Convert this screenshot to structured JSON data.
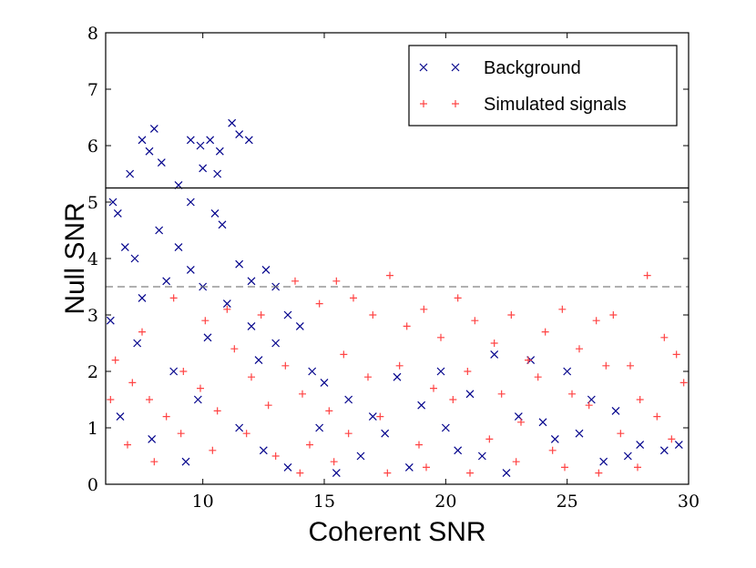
{
  "chart_data": {
    "type": "scatter",
    "title": "",
    "xlabel": "Coherent SNR",
    "ylabel": "Null SNR",
    "xlim": [
      6,
      30
    ],
    "ylim": [
      0,
      8
    ],
    "x_ticks": [
      "10",
      "15",
      "20",
      "25",
      "30"
    ],
    "y_ticks": [
      "0",
      "1",
      "2",
      "3",
      "4",
      "5",
      "6",
      "7",
      "8"
    ],
    "grid": false,
    "legend_position": "top-right",
    "threshold_lines": [
      {
        "name": "solid-threshold",
        "y": 5.25,
        "style": "solid",
        "color": "#000000"
      },
      {
        "name": "dashed-threshold",
        "y": 3.5,
        "style": "dashed",
        "color": "#808080"
      }
    ],
    "series": [
      {
        "name": "Background",
        "marker": "x",
        "color": "#00008b",
        "points": [
          [
            6.5,
            4.8
          ],
          [
            7.0,
            5.5
          ],
          [
            7.5,
            6.1
          ],
          [
            8.0,
            6.3
          ],
          [
            7.8,
            5.9
          ],
          [
            8.3,
            5.7
          ],
          [
            9.0,
            5.3
          ],
          [
            9.5,
            6.1
          ],
          [
            9.9,
            6.0
          ],
          [
            10.3,
            6.1
          ],
          [
            10.7,
            5.9
          ],
          [
            11.2,
            6.4
          ],
          [
            11.5,
            6.2
          ],
          [
            11.9,
            6.1
          ],
          [
            10.0,
            5.6
          ],
          [
            10.6,
            5.5
          ],
          [
            9.5,
            5.0
          ],
          [
            10.5,
            4.8
          ],
          [
            10.8,
            4.6
          ],
          [
            11.5,
            3.9
          ],
          [
            12.0,
            3.6
          ],
          [
            12.6,
            3.8
          ],
          [
            13.0,
            3.5
          ],
          [
            13.5,
            3.0
          ],
          [
            14.0,
            2.8
          ],
          [
            6.8,
            4.2
          ],
          [
            7.2,
            4.0
          ],
          [
            8.2,
            4.5
          ],
          [
            9.0,
            4.2
          ],
          [
            9.5,
            3.8
          ],
          [
            10.0,
            3.5
          ],
          [
            11.0,
            3.2
          ],
          [
            12.0,
            2.8
          ],
          [
            13.0,
            2.5
          ],
          [
            14.5,
            2.0
          ],
          [
            15.0,
            1.8
          ],
          [
            16.0,
            1.5
          ],
          [
            17.0,
            1.2
          ],
          [
            18.0,
            1.9
          ],
          [
            19.0,
            1.4
          ],
          [
            20.0,
            1.0
          ],
          [
            21.0,
            1.6
          ],
          [
            22.0,
            2.3
          ],
          [
            23.0,
            1.2
          ],
          [
            24.0,
            1.1
          ],
          [
            25.0,
            2.0
          ],
          [
            26.0,
            1.5
          ],
          [
            27.0,
            1.3
          ],
          [
            28.0,
            0.7
          ],
          [
            29.0,
            0.6
          ],
          [
            29.6,
            0.7
          ],
          [
            16.5,
            0.5
          ],
          [
            18.5,
            0.3
          ],
          [
            20.5,
            0.6
          ],
          [
            22.5,
            0.2
          ],
          [
            24.5,
            0.8
          ],
          [
            26.5,
            0.4
          ],
          [
            7.5,
            3.3
          ],
          [
            8.5,
            3.6
          ],
          [
            6.3,
            5.0
          ],
          [
            7.3,
            2.5
          ],
          [
            8.8,
            2.0
          ],
          [
            9.8,
            1.5
          ],
          [
            11.5,
            1.0
          ],
          [
            12.5,
            0.6
          ],
          [
            13.5,
            0.3
          ],
          [
            15.5,
            0.2
          ],
          [
            6.6,
            1.2
          ],
          [
            7.9,
            0.8
          ],
          [
            9.3,
            0.4
          ],
          [
            6.2,
            2.9
          ],
          [
            10.2,
            2.6
          ],
          [
            12.3,
            2.2
          ],
          [
            14.8,
            1.0
          ],
          [
            17.5,
            0.9
          ],
          [
            19.8,
            2.0
          ],
          [
            21.5,
            0.5
          ],
          [
            23.5,
            2.2
          ],
          [
            25.5,
            0.9
          ],
          [
            27.5,
            0.5
          ]
        ]
      },
      {
        "name": "Simulated signals",
        "marker": "+",
        "color": "#ff4444",
        "points": [
          [
            6.4,
            2.2
          ],
          [
            7.1,
            1.8
          ],
          [
            7.8,
            1.5
          ],
          [
            8.5,
            1.2
          ],
          [
            9.2,
            2.0
          ],
          [
            9.9,
            1.7
          ],
          [
            10.6,
            1.3
          ],
          [
            11.3,
            2.4
          ],
          [
            12.0,
            1.9
          ],
          [
            12.7,
            1.4
          ],
          [
            13.4,
            2.1
          ],
          [
            14.1,
            1.6
          ],
          [
            14.8,
            3.2
          ],
          [
            15.5,
            3.6
          ],
          [
            16.2,
            3.3
          ],
          [
            17.0,
            3.0
          ],
          [
            17.7,
            3.7
          ],
          [
            18.4,
            2.8
          ],
          [
            19.1,
            3.1
          ],
          [
            19.8,
            2.6
          ],
          [
            20.5,
            3.3
          ],
          [
            21.2,
            2.9
          ],
          [
            22.0,
            2.5
          ],
          [
            22.7,
            3.0
          ],
          [
            23.4,
            2.2
          ],
          [
            24.1,
            2.7
          ],
          [
            24.8,
            3.1
          ],
          [
            25.5,
            2.4
          ],
          [
            26.2,
            2.9
          ],
          [
            26.9,
            3.0
          ],
          [
            27.6,
            2.1
          ],
          [
            28.3,
            3.7
          ],
          [
            29.0,
            2.6
          ],
          [
            29.5,
            2.3
          ],
          [
            29.8,
            1.8
          ],
          [
            28.7,
            1.2
          ],
          [
            27.2,
            0.9
          ],
          [
            25.9,
            1.4
          ],
          [
            24.4,
            0.6
          ],
          [
            23.1,
            1.1
          ],
          [
            21.8,
            0.8
          ],
          [
            20.3,
            1.5
          ],
          [
            18.9,
            0.7
          ],
          [
            17.3,
            1.2
          ],
          [
            16.0,
            0.9
          ],
          [
            15.2,
            1.3
          ],
          [
            14.4,
            0.7
          ],
          [
            13.0,
            0.5
          ],
          [
            11.8,
            0.9
          ],
          [
            10.4,
            0.6
          ],
          [
            9.1,
            0.9
          ],
          [
            8.0,
            0.4
          ],
          [
            6.9,
            0.7
          ],
          [
            6.2,
            1.5
          ],
          [
            7.5,
            2.7
          ],
          [
            8.8,
            3.3
          ],
          [
            10.1,
            2.9
          ],
          [
            11.0,
            3.1
          ],
          [
            12.4,
            3.0
          ],
          [
            13.8,
            3.6
          ],
          [
            15.8,
            2.3
          ],
          [
            16.8,
            1.9
          ],
          [
            18.1,
            2.1
          ],
          [
            19.5,
            1.7
          ],
          [
            20.9,
            2.0
          ],
          [
            22.3,
            1.6
          ],
          [
            23.8,
            1.9
          ],
          [
            25.2,
            1.6
          ],
          [
            26.6,
            2.1
          ],
          [
            28.0,
            1.5
          ],
          [
            29.3,
            0.8
          ],
          [
            27.9,
            0.3
          ],
          [
            26.3,
            0.2
          ],
          [
            24.9,
            0.3
          ],
          [
            22.9,
            0.4
          ],
          [
            21.0,
            0.2
          ],
          [
            19.2,
            0.3
          ],
          [
            17.6,
            0.2
          ],
          [
            15.4,
            0.4
          ],
          [
            14.0,
            0.2
          ]
        ]
      }
    ]
  }
}
